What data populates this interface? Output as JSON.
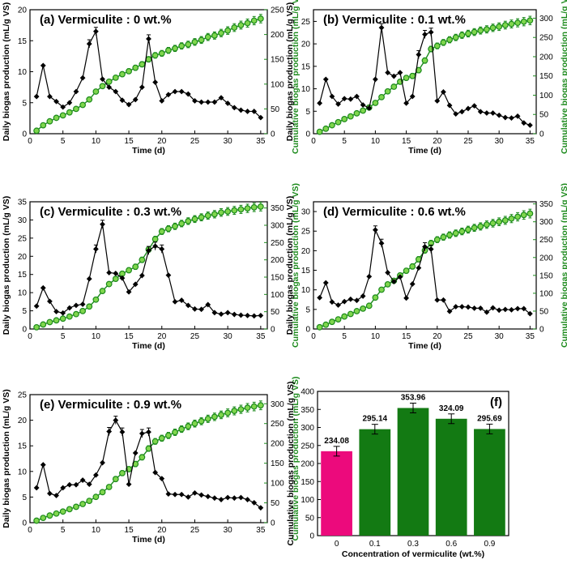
{
  "colors": {
    "daily": "#000000",
    "cumulative": "#1c8a1c",
    "cumulative_marker": "#7fd64d",
    "bar_control": "#ec0a7c",
    "bar_treated": "#137a13"
  },
  "labels": {
    "daily_y": "Daily biogas production (mL/g VS)",
    "cum_y": "Cumulative biogas production (mL/g VS)",
    "time_x": "Time (d)",
    "bar_x": "Concentration of vermiculite (wt.%)",
    "bar_y": "Cumulative biogas production (mL/g VS)"
  },
  "chart_data": [
    {
      "type": "line",
      "title": "(a) Vermiculite : 0 wt.%",
      "xlabel": "Time (d)",
      "ylabel": "Daily biogas production (mL/g VS)",
      "y2label": "Cumulative biogas production (mL/g VS)",
      "xlim": [
        0,
        36
      ],
      "ylim": [
        0,
        20
      ],
      "y2lim": [
        0,
        250
      ],
      "x": [
        1,
        2,
        3,
        4,
        5,
        6,
        7,
        8,
        9,
        10,
        11,
        12,
        13,
        14,
        15,
        16,
        17,
        18,
        19,
        20,
        21,
        22,
        23,
        24,
        25,
        26,
        27,
        28,
        29,
        30,
        31,
        32,
        33,
        34,
        35
      ],
      "series": [
        {
          "axis": "left",
          "values": [
            6.0,
            11.0,
            6.0,
            5.2,
            4.3,
            5.0,
            6.8,
            9.0,
            14.5,
            16.5,
            8.8,
            7.5,
            6.8,
            5.4,
            4.7,
            5.5,
            7.5,
            15.3,
            8.3,
            5.3,
            6.3,
            6.8,
            6.8,
            6.4,
            5.3,
            5.1,
            5.1,
            5.1,
            5.8,
            4.9,
            4.2,
            3.8,
            3.6,
            3.6,
            2.6
          ]
        },
        {
          "axis": "right",
          "values": [
            6,
            17,
            25,
            32,
            37,
            43,
            50,
            58,
            69,
            85,
            96,
            105,
            113,
            120,
            126,
            133,
            140,
            150,
            158,
            162,
            168,
            172,
            177,
            180,
            185,
            189,
            195,
            198,
            203,
            208,
            214,
            219,
            223,
            228,
            232
          ]
        }
      ]
    },
    {
      "type": "line",
      "title": "(b) Vermiculite : 0.1 wt.%",
      "xlabel": "Time (d)",
      "ylabel": "Daily biogas production (mL/g VS)",
      "y2label": "Cumulative biogas production (mL/g VS)",
      "xlim": [
        0,
        36
      ],
      "ylim": [
        0,
        27.6
      ],
      "y2lim": [
        0,
        322
      ],
      "x": [
        1,
        2,
        3,
        4,
        5,
        6,
        7,
        8,
        9,
        10,
        11,
        12,
        13,
        14,
        15,
        16,
        17,
        18,
        19,
        20,
        21,
        22,
        23,
        24,
        25,
        26,
        27,
        28,
        29,
        30,
        31,
        32,
        33,
        34,
        35
      ],
      "series": [
        {
          "axis": "left",
          "values": [
            6.8,
            12.1,
            8.3,
            6.6,
            7.8,
            7.7,
            8.3,
            6.4,
            5.7,
            12.1,
            23.6,
            13.6,
            12.8,
            13.6,
            6.8,
            8.3,
            17.6,
            22.1,
            22.6,
            7.3,
            9.3,
            6.3,
            4.4,
            4.9,
            5.6,
            6.2,
            4.9,
            4.6,
            4.6,
            4.1,
            3.6,
            3.5,
            3.9,
            2.4,
            1.9
          ]
        },
        {
          "axis": "right",
          "values": [
            5,
            13,
            22,
            30,
            38,
            45,
            53,
            60,
            68,
            80,
            95,
            110,
            122,
            135,
            145,
            150,
            165,
            190,
            220,
            228,
            237,
            244,
            250,
            256,
            260,
            264,
            268,
            271,
            275,
            278,
            282,
            285,
            288,
            291,
            294
          ]
        }
      ]
    },
    {
      "type": "line",
      "title": "(c) Vermiculite : 0.3 wt.%",
      "xlabel": "Time (d)",
      "ylabel": "Daily biogas production (mL/g VS)",
      "y2label": "Cumulative biogas production (mL/g VS)",
      "xlim": [
        0,
        36
      ],
      "ylim": [
        0,
        35
      ],
      "y2lim": [
        0,
        368
      ],
      "x": [
        1,
        2,
        3,
        4,
        5,
        6,
        7,
        8,
        9,
        10,
        11,
        12,
        13,
        14,
        15,
        16,
        17,
        18,
        19,
        20,
        21,
        22,
        23,
        24,
        25,
        26,
        27,
        28,
        29,
        30,
        31,
        32,
        33,
        34,
        35
      ],
      "series": [
        {
          "axis": "left",
          "values": [
            6.3,
            11.3,
            7.6,
            4.8,
            4.4,
            5.8,
            6.5,
            6.8,
            13.8,
            22.0,
            28.8,
            15.5,
            15.3,
            14.0,
            10.2,
            12.3,
            14.7,
            21.6,
            22.8,
            22.0,
            14.8,
            7.5,
            7.9,
            6.5,
            5.5,
            5.4,
            6.7,
            4.5,
            4.1,
            4.5,
            4.0,
            3.8,
            3.7,
            3.6,
            3.7
          ]
        },
        {
          "axis": "right",
          "values": [
            5,
            13,
            20,
            25,
            30,
            36,
            43,
            52,
            65,
            85,
            110,
            130,
            145,
            160,
            170,
            180,
            200,
            230,
            260,
            282,
            290,
            297,
            305,
            312,
            318,
            323,
            328,
            332,
            337,
            340,
            343,
            346,
            349,
            352,
            354
          ]
        }
      ]
    },
    {
      "type": "line",
      "title": "(d) Vermiculite : 0.6 wt.%",
      "xlabel": "Time (d)",
      "ylabel": "Daily biogas production (mL/g VS)",
      "y2label": "Cumulative biogas production (mL/g VS)",
      "xlim": [
        0,
        36
      ],
      "ylim": [
        0,
        32.5
      ],
      "y2lim": [
        0,
        356
      ],
      "x": [
        1,
        2,
        3,
        4,
        5,
        6,
        7,
        8,
        9,
        10,
        11,
        12,
        13,
        14,
        15,
        16,
        17,
        18,
        19,
        20,
        21,
        22,
        23,
        24,
        25,
        26,
        27,
        28,
        29,
        30,
        31,
        32,
        33,
        34,
        35
      ],
      "series": [
        {
          "axis": "left",
          "values": [
            8.0,
            11.8,
            6.9,
            6.1,
            7.0,
            7.6,
            7.3,
            8.4,
            13.4,
            25.3,
            21.9,
            14.4,
            12.1,
            13.3,
            7.9,
            11.5,
            15.6,
            21.0,
            20.4,
            7.4,
            7.4,
            4.5,
            5.7,
            5.7,
            5.6,
            5.3,
            5.3,
            4.3,
            5.4,
            4.8,
            5.0,
            4.9,
            5.2,
            5.2,
            3.9
          ]
        },
        {
          "axis": "right",
          "values": [
            5,
            12,
            20,
            27,
            35,
            42,
            50,
            57,
            65,
            88,
            110,
            125,
            135,
            150,
            163,
            175,
            195,
            220,
            240,
            250,
            257,
            263,
            268,
            273,
            278,
            283,
            287,
            292,
            296,
            300,
            304,
            309,
            314,
            319,
            323
          ]
        }
      ]
    },
    {
      "type": "line",
      "title": "(e) Vermiculite : 0.9 wt.%",
      "xlabel": "Time (d)",
      "ylabel": "Daily biogas production (mL/g VS)",
      "y2label": "Cumulative biogas production (mL/g VS)",
      "xlim": [
        0,
        36
      ],
      "ylim": [
        0,
        25
      ],
      "y2lim": [
        0,
        323
      ],
      "x": [
        1,
        2,
        3,
        4,
        5,
        6,
        7,
        8,
        9,
        10,
        11,
        12,
        13,
        14,
        15,
        16,
        17,
        18,
        19,
        20,
        21,
        22,
        23,
        24,
        25,
        26,
        27,
        28,
        29,
        30,
        31,
        32,
        33,
        34,
        35
      ],
      "series": [
        {
          "axis": "left",
          "values": [
            6.8,
            11.3,
            5.7,
            5.3,
            6.8,
            7.4,
            7.4,
            8.3,
            7.5,
            9.3,
            11.7,
            17.8,
            20.0,
            17.7,
            7.5,
            13.6,
            17.4,
            17.7,
            9.8,
            8.6,
            5.6,
            5.5,
            5.5,
            5.0,
            5.8,
            5.4,
            5.1,
            4.8,
            4.5,
            4.9,
            4.8,
            4.9,
            4.5,
            3.9,
            2.9
          ]
        },
        {
          "axis": "right",
          "values": [
            5,
            12,
            18,
            23,
            28,
            34,
            40,
            47,
            55,
            65,
            77,
            90,
            110,
            125,
            135,
            148,
            165,
            187,
            205,
            213,
            220,
            228,
            236,
            243,
            250,
            256,
            262,
            267,
            272,
            277,
            282,
            286,
            290,
            293,
            296
          ]
        }
      ]
    },
    {
      "type": "bar",
      "title": "(f)",
      "xlabel": "Concentration of vermiculite (wt.%)",
      "ylabel": "Cumulative biogas production (mL/g VS)",
      "categories": [
        "0",
        "0.1",
        "0.3",
        "0.6",
        "0.9"
      ],
      "values": [
        234.08,
        295.14,
        353.96,
        324.09,
        295.69
      ],
      "value_labels": [
        "234.08",
        "295.14",
        "353.96",
        "324.09",
        "295.69"
      ],
      "ylim": [
        0,
        400
      ]
    }
  ]
}
